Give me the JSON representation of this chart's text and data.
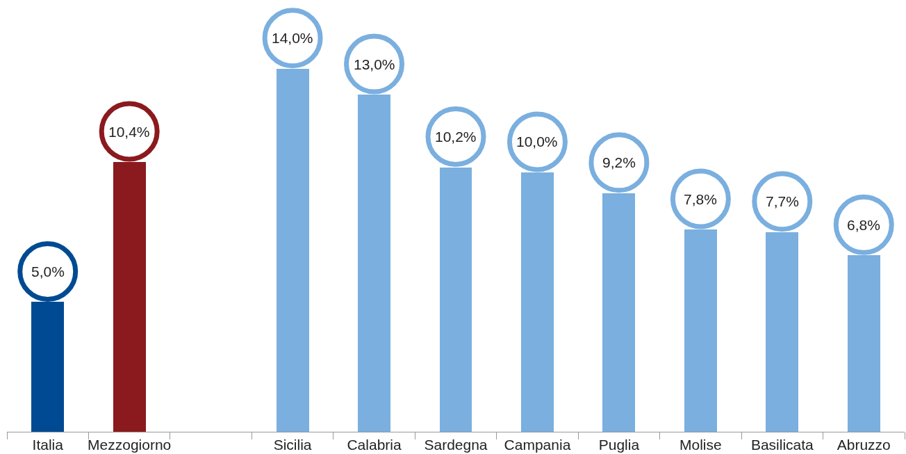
{
  "chart_data": {
    "type": "bar",
    "categories": [
      "Italia",
      "Mezzogiorno",
      null,
      "Sicilia",
      "Calabria",
      "Sardegna",
      "Campania",
      "Puglia",
      "Molise",
      "Basilicata",
      "Abruzzo"
    ],
    "values": [
      5.0,
      10.4,
      null,
      14.0,
      13.0,
      10.2,
      10.0,
      9.2,
      7.8,
      7.7,
      6.8
    ],
    "value_labels": [
      "5,0%",
      "10,4%",
      null,
      "14,0%",
      "13,0%",
      "10,2%",
      "10,0%",
      "9,2%",
      "7,8%",
      "7,7%",
      "6,8%"
    ],
    "colors": [
      "#004a93",
      "#8b1a1e",
      null,
      "#7aafdf",
      "#7aafdf",
      "#7aafdf",
      "#7aafdf",
      "#7aafdf",
      "#7aafdf",
      "#7aafdf",
      "#7aafdf"
    ],
    "grid": false
  }
}
